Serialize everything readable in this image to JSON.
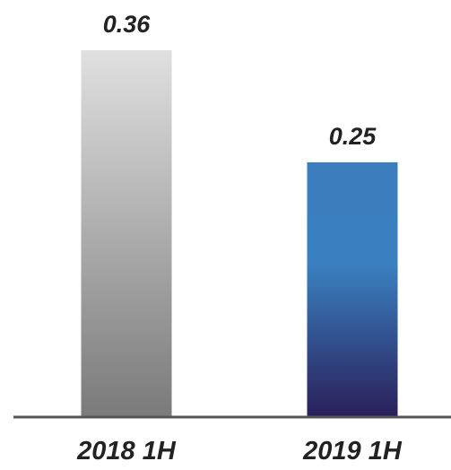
{
  "chart_data": {
    "type": "bar",
    "categories": [
      "2018 1H",
      "2019 1H"
    ],
    "values": [
      0.36,
      0.25
    ],
    "data_labels": [
      "0.36",
      "0.25"
    ],
    "ylim": [
      0,
      0.36
    ],
    "grid": false,
    "title": "",
    "xlabel": "",
    "ylabel": "",
    "colors": {
      "bar_2018_top": "#e0e0e0",
      "bar_2018_bottom": "#7a7a7a",
      "bar_2019_top": "#3b7dbd",
      "bar_2019_mid": "#3a80c0",
      "bar_2019_bottom": "#2a1f5a",
      "axis_line": "#555555",
      "text": "#222222"
    }
  }
}
